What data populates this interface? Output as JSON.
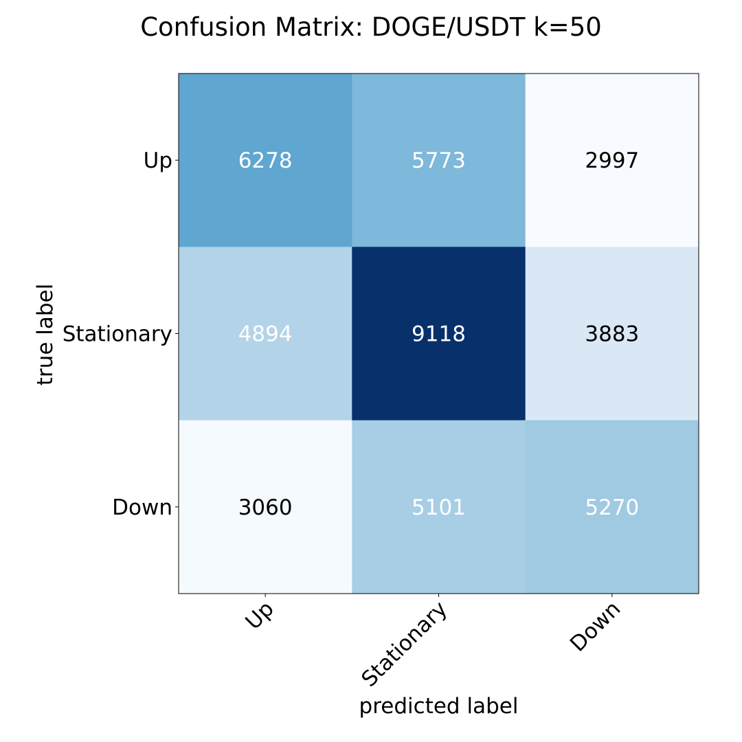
{
  "chart_data": {
    "type": "heatmap",
    "title": "Confusion Matrix: DOGE/USDT k=50",
    "xlabel": "predicted label",
    "ylabel": "true label",
    "x_categories": [
      "Up",
      "Stationary",
      "Down"
    ],
    "y_categories": [
      "Up",
      "Stationary",
      "Down"
    ],
    "values": [
      [
        6278,
        5773,
        2997
      ],
      [
        4894,
        9118,
        3883
      ],
      [
        3060,
        5101,
        5270
      ]
    ],
    "colormap": "Blues",
    "vmin": 2997,
    "vmax": 9118
  }
}
